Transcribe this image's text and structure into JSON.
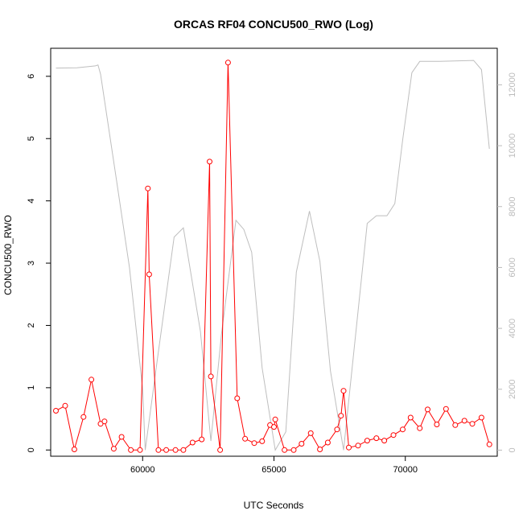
{
  "chart_data": {
    "type": "line",
    "title": "ORCAS RF04 CONCU500_RWO (Log)",
    "xlabel": "UTC Seconds",
    "ylabel": "CONCU500_RWO",
    "xlim": [
      56500,
      73500
    ],
    "ylim": [
      -0.1,
      6.45
    ],
    "x_ticks": [
      60000,
      65000,
      70000
    ],
    "y_ticks": [
      0,
      1,
      2,
      3,
      4,
      5,
      6
    ],
    "y2lim": [
      -200,
      13200
    ],
    "y2_ticks": [
      0,
      2000,
      4000,
      6000,
      8000,
      10000,
      12000
    ],
    "grid": false,
    "colors": {
      "primary": "#ff0000",
      "secondary": "#bebebe"
    },
    "series": [
      {
        "axis": "left",
        "style": "line+circle",
        "x": [
          56700,
          57050,
          57400,
          57750,
          58050,
          58400,
          58550,
          58900,
          59200,
          59550,
          59900,
          60200,
          60250,
          60600,
          60900,
          61250,
          61550,
          61900,
          62250,
          62550,
          62600,
          62950,
          63250,
          63600,
          63900,
          64250,
          64550,
          64850,
          65000,
          65050,
          65400,
          65750,
          66050,
          66400,
          66750,
          67050,
          67400,
          67550,
          67650,
          67850,
          68200,
          68550,
          68900,
          69200,
          69550,
          69900,
          70200,
          70550,
          70850,
          71200,
          71550,
          71900,
          72250,
          72550,
          72900,
          73200
        ],
        "values": [
          0.63,
          0.71,
          0.01,
          0.53,
          1.13,
          0.42,
          0.46,
          0.02,
          0.21,
          0.0,
          0.0,
          4.2,
          2.82,
          0.0,
          0.0,
          0.0,
          0.0,
          0.12,
          0.17,
          4.63,
          1.18,
          0.0,
          6.22,
          0.83,
          0.18,
          0.11,
          0.14,
          0.4,
          0.37,
          0.49,
          0.0,
          0.0,
          0.1,
          0.27,
          0.01,
          0.12,
          0.33,
          0.55,
          0.95,
          0.04,
          0.07,
          0.15,
          0.19,
          0.15,
          0.24,
          0.33,
          0.52,
          0.35,
          0.65,
          0.41,
          0.66,
          0.4,
          0.47,
          0.42,
          0.52,
          0.09
        ]
      },
      {
        "axis": "right",
        "style": "line",
        "x": [
          56700,
          57500,
          58200,
          58300,
          58400,
          59000,
          59500,
          60000,
          60100,
          60500,
          61200,
          61550,
          62200,
          62600,
          63000,
          63550,
          63850,
          64150,
          64550,
          65050,
          65450,
          65850,
          66350,
          66750,
          67150,
          67650,
          68550,
          68900,
          69300,
          69600,
          69900,
          70250,
          70550,
          71300,
          72600,
          72900,
          73200
        ],
        "values": [
          12550,
          12560,
          12620,
          12650,
          12350,
          8900,
          6000,
          2000,
          0,
          2600,
          7000,
          7300,
          3900,
          300,
          3800,
          7550,
          7250,
          6500,
          2700,
          0,
          600,
          5850,
          7850,
          6200,
          2600,
          0,
          7450,
          7700,
          7700,
          8100,
          10200,
          12400,
          12770,
          12770,
          12800,
          12500,
          9900
        ]
      }
    ]
  }
}
